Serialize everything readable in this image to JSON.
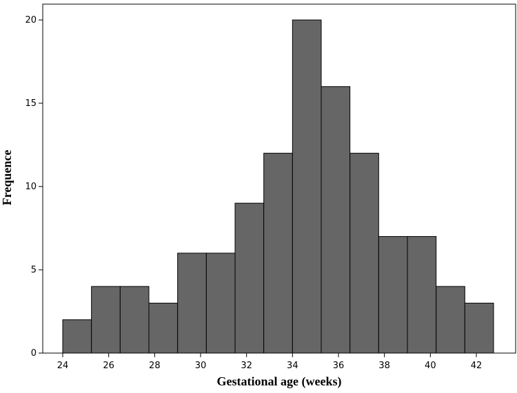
{
  "chart_data": {
    "type": "histogram",
    "x_label": "Gestational age (weeks)",
    "y_label": "Frequence",
    "bins": [
      24,
      25.25,
      26.5,
      27.75,
      29,
      30.25,
      31.5,
      32.75,
      34,
      35.25,
      36.5,
      37.75,
      39,
      40.25,
      41.5,
      42.75
    ],
    "values": [
      2,
      4,
      4,
      3,
      6,
      6,
      9,
      12,
      20,
      16,
      12,
      7,
      7,
      4,
      3
    ],
    "color": "#666666",
    "xlim": [
      23.13,
      43.71
    ],
    "xticks": [
      24,
      26,
      28,
      30,
      32,
      34,
      36,
      38,
      40,
      42
    ],
    "ylim": [
      0,
      20.95
    ],
    "yticks": [
      0,
      5,
      10,
      15,
      20
    ]
  }
}
